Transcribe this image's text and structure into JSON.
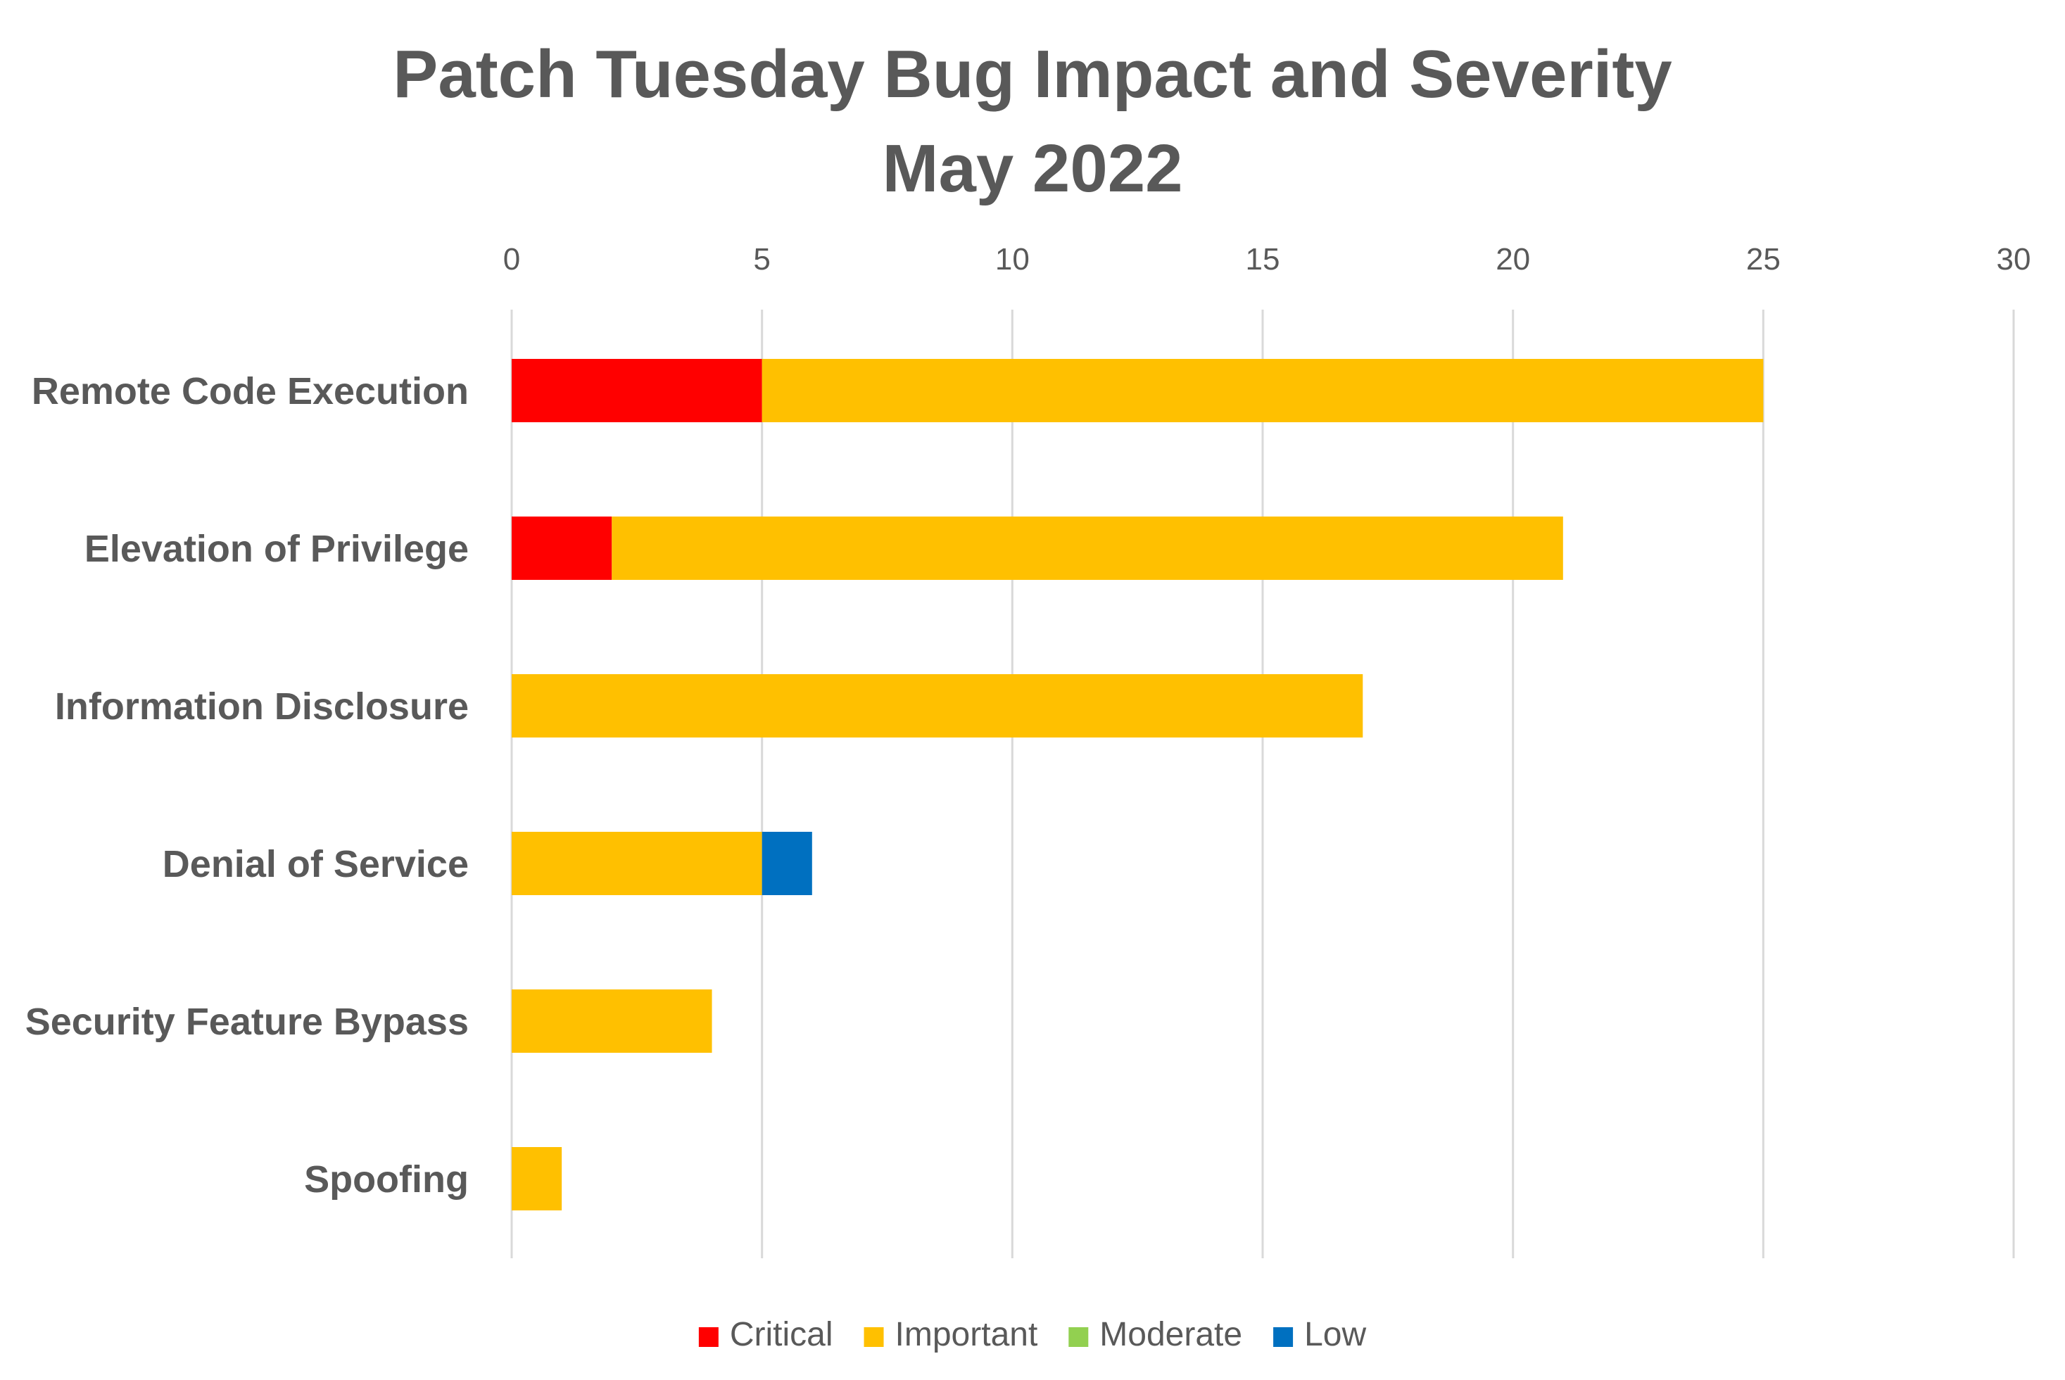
{
  "chart_data": {
    "type": "bar",
    "orientation": "horizontal",
    "stacked": true,
    "title": "Patch Tuesday Bug Impact and Severity",
    "subtitle": "May 2022",
    "categories": [
      "Remote Code Execution",
      "Elevation of Privilege",
      "Information Disclosure",
      "Denial of Service",
      "Security Feature Bypass",
      "Spoofing"
    ],
    "series": [
      {
        "name": "Critical",
        "color": "#ff0000",
        "values": [
          5,
          2,
          0,
          0,
          0,
          0
        ]
      },
      {
        "name": "Important",
        "color": "#ffc000",
        "values": [
          20,
          19,
          17,
          5,
          4,
          1
        ]
      },
      {
        "name": "Moderate",
        "color": "#92d050",
        "values": [
          0,
          0,
          0,
          0,
          0,
          0
        ]
      },
      {
        "name": "Low",
        "color": "#0070c0",
        "values": [
          0,
          0,
          0,
          1,
          0,
          0
        ]
      }
    ],
    "xlim": [
      0,
      30
    ],
    "xticks": [
      "0",
      "5",
      "10",
      "15",
      "20",
      "25",
      "30"
    ],
    "x_axis_position": "top",
    "grid": true,
    "legend_position": "bottom"
  }
}
